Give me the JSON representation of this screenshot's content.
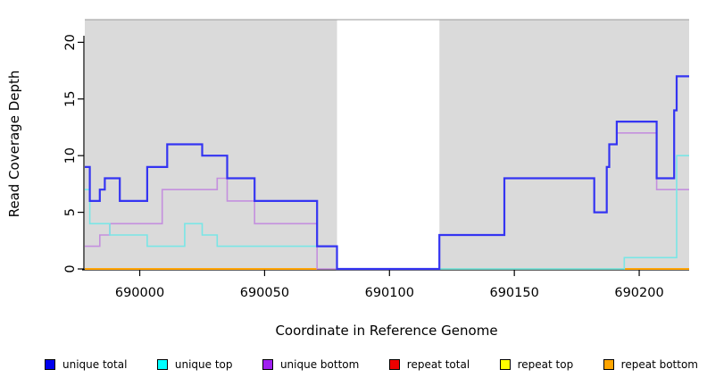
{
  "chart_data": {
    "type": "line",
    "subtype": "step",
    "title": "",
    "xlabel": "Coordinate in Reference Genome",
    "ylabel": "Read Coverage Depth",
    "xlim": [
      689978,
      690220
    ],
    "ylim": [
      0,
      22
    ],
    "x_ticks": [
      690000,
      690050,
      690100,
      690150,
      690200
    ],
    "y_ticks": [
      0,
      5,
      10,
      15,
      20
    ],
    "grid": "off",
    "legend_position": "bottom",
    "plot_background": "#dadada",
    "gap_region": {
      "start": 690079,
      "end": 690120,
      "color": "#ffffff"
    },
    "axis_color": "#000000",
    "top_border_color": "#999999",
    "series": [
      {
        "name": "repeat total",
        "color": "#dd0000",
        "width": 1.6,
        "in_legend": true,
        "segments": []
      },
      {
        "name": "repeat top",
        "color": "#f5f500",
        "width": 1.6,
        "in_legend": true,
        "segments": []
      },
      {
        "name": "zero-baseline-green",
        "color": "#7cc87c",
        "width": 1.5,
        "in_legend": false,
        "segments": [
          [
            [
              690120,
              0
            ],
            [
              690194,
              0
            ]
          ]
        ]
      },
      {
        "name": "repeat bottom",
        "color": "#ffa405",
        "width": 2,
        "in_legend": true,
        "segments": [
          [
            [
              689978,
              0
            ],
            [
              690071,
              0
            ]
          ],
          [
            [
              690194,
              0
            ],
            [
              690220,
              0
            ]
          ]
        ]
      },
      {
        "name": "unique bottom",
        "color": "#c48fde",
        "width": 1.6,
        "in_legend": true,
        "segments": [
          [
            [
              689978,
              2
            ],
            [
              689984,
              3
            ],
            [
              689988,
              4
            ],
            [
              690009,
              7
            ],
            [
              690031,
              8
            ],
            [
              690035,
              6
            ],
            [
              690046,
              4
            ],
            [
              690071,
              0
            ],
            [
              690120,
              3
            ],
            [
              690146,
              8
            ],
            [
              690182,
              5
            ],
            [
              690187,
              9
            ],
            [
              690188,
              11
            ],
            [
              690191,
              12
            ],
            [
              690207,
              7
            ],
            [
              690220,
              7
            ]
          ]
        ]
      },
      {
        "name": "unique top",
        "color": "#79e6e6",
        "width": 1.6,
        "in_legend": true,
        "segments": [
          [
            [
              689978,
              7
            ],
            [
              689980,
              4
            ],
            [
              689988,
              3
            ],
            [
              690003,
              2
            ],
            [
              690018,
              4
            ],
            [
              690025,
              3
            ],
            [
              690031,
              2
            ],
            [
              690079,
              0
            ],
            [
              690194,
              1
            ],
            [
              690215,
              10
            ],
            [
              690220,
              10
            ]
          ]
        ]
      },
      {
        "name": "unique total",
        "color": "#3434f2",
        "width": 2.2,
        "in_legend": true,
        "segments": [
          [
            [
              689978,
              9
            ],
            [
              689980,
              6
            ],
            [
              689984,
              7
            ],
            [
              689986,
              8
            ],
            [
              689992,
              6
            ],
            [
              690003,
              9
            ],
            [
              690011,
              11
            ],
            [
              690025,
              10
            ],
            [
              690035,
              8
            ],
            [
              690046,
              6
            ],
            [
              690071,
              2
            ],
            [
              690079,
              0
            ],
            [
              690120,
              3
            ],
            [
              690146,
              8
            ],
            [
              690182,
              5
            ],
            [
              690187,
              9
            ],
            [
              690188,
              11
            ],
            [
              690191,
              13
            ],
            [
              690207,
              8
            ],
            [
              690214,
              14
            ],
            [
              690215,
              17
            ],
            [
              690220,
              17
            ]
          ]
        ]
      }
    ],
    "legend": [
      {
        "label": "unique total",
        "swatch": "#0000ee"
      },
      {
        "label": "unique top",
        "swatch": "#00ffff"
      },
      {
        "label": "unique bottom",
        "swatch": "#a020f0"
      },
      {
        "label": "repeat total",
        "swatch": "#ee0000"
      },
      {
        "label": "repeat top",
        "swatch": "#ffff00"
      },
      {
        "label": "repeat bottom",
        "swatch": "#ffa500"
      }
    ]
  }
}
